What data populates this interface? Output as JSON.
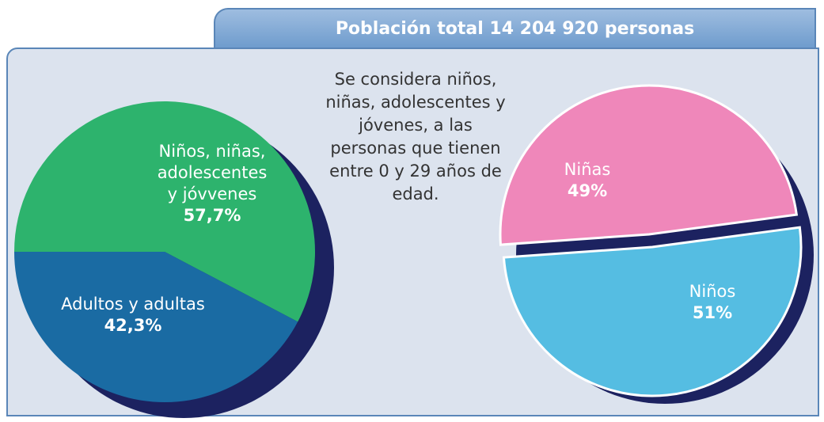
{
  "title": "Población total 14 204 920 personas",
  "note": "Se considera niños, niñas, adolescentes y jóvenes, a las personas que tienen entre 0 y 29 años de edad.",
  "chart_data": [
    {
      "type": "pie",
      "categories": [
        "Niños, niñas, adolescentes y jóvvenes",
        "Adultos y adultas"
      ],
      "values": [
        57.7,
        42.3
      ],
      "value_labels": [
        "57,7%",
        "42,3%"
      ],
      "colors": [
        "#2db36d",
        "#1a6ba3"
      ]
    },
    {
      "type": "pie",
      "categories": [
        "Niñas",
        "Niños"
      ],
      "values": [
        49,
        51
      ],
      "value_labels": [
        "49%",
        "51%"
      ],
      "colors": [
        "#ef87ba",
        "#55bde2"
      ]
    }
  ]
}
